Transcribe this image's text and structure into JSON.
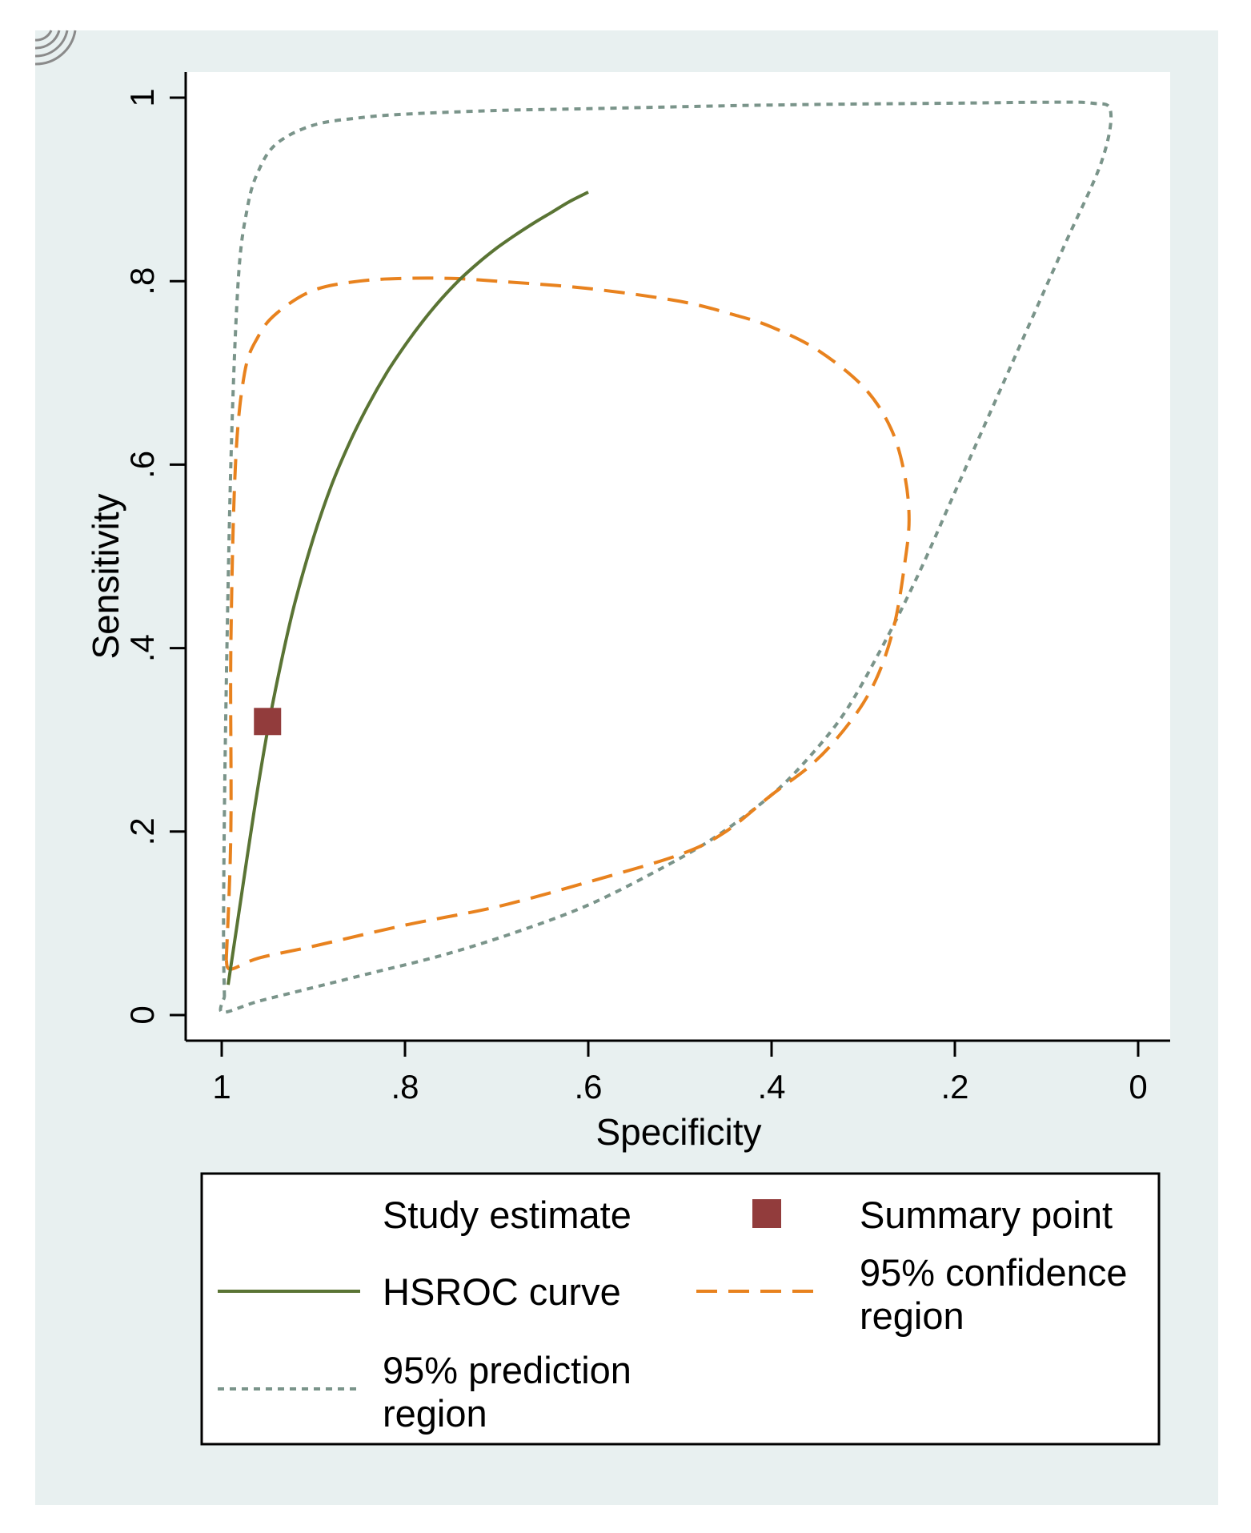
{
  "colors": {
    "outer_background": "#e8f0f0",
    "plot_background": "#ffffff",
    "hsroc": "#5a7434",
    "confidence": "#e8821e",
    "prediction": "#7a948a",
    "summary": "#923c3c",
    "axis": "#000000"
  },
  "chart_data": {
    "type": "line",
    "xlabel": "Specificity",
    "ylabel": "Sensitivity",
    "xlim": [
      1,
      0
    ],
    "ylim": [
      0,
      1
    ],
    "x_ticks": [
      1,
      0.8,
      0.6,
      0.4,
      0.2,
      0
    ],
    "x_tick_labels": [
      "1",
      ".8",
      ".6",
      ".4",
      ".2",
      "0"
    ],
    "y_ticks": [
      0,
      0.2,
      0.4,
      0.6,
      0.8,
      1
    ],
    "y_tick_labels": [
      "0",
      ".2",
      ".4",
      ".6",
      ".8",
      "1"
    ],
    "grid": false,
    "summary_point": {
      "name": "Summary point",
      "specificity": 0.95,
      "sensitivity": 0.32
    },
    "series": [
      {
        "name": "HSROC curve",
        "style": "solid",
        "specificity": [
          0.993,
          0.98,
          0.965,
          0.95,
          0.935,
          0.92,
          0.9,
          0.88,
          0.86,
          0.84,
          0.82,
          0.8,
          0.78,
          0.76,
          0.74,
          0.72,
          0.7,
          0.68,
          0.66,
          0.64,
          0.62,
          0.6
        ],
        "sensitivity": [
          0.033,
          0.12,
          0.22,
          0.31,
          0.385,
          0.45,
          0.52,
          0.578,
          0.625,
          0.665,
          0.7,
          0.73,
          0.757,
          0.781,
          0.802,
          0.82,
          0.836,
          0.85,
          0.863,
          0.875,
          0.887,
          0.897
        ]
      },
      {
        "name": "95% confidence region",
        "style": "dashed",
        "specificity": [
          0.995,
          0.99,
          0.99,
          0.985,
          0.975,
          0.96,
          0.94,
          0.9,
          0.85,
          0.8,
          0.75,
          0.7,
          0.6,
          0.5,
          0.44,
          0.4,
          0.35,
          0.3,
          0.27,
          0.255,
          0.25,
          0.255,
          0.265,
          0.28,
          0.3,
          0.33,
          0.36,
          0.4,
          0.45,
          0.5,
          0.6,
          0.7,
          0.8,
          0.9,
          0.96,
          0.99,
          0.995
        ],
        "sensitivity": [
          0.06,
          0.2,
          0.4,
          0.6,
          0.7,
          0.74,
          0.765,
          0.79,
          0.8,
          0.803,
          0.803,
          0.8,
          0.792,
          0.778,
          0.763,
          0.75,
          0.725,
          0.685,
          0.64,
          0.59,
          0.54,
          0.49,
          0.43,
          0.38,
          0.34,
          0.3,
          0.27,
          0.24,
          0.2,
          0.175,
          0.145,
          0.118,
          0.098,
          0.075,
          0.062,
          0.05,
          0.06
        ]
      },
      {
        "name": "95% prediction region",
        "style": "dotted",
        "specificity": [
          0.997,
          0.998,
          0.996,
          0.99,
          0.982,
          0.972,
          0.96,
          0.94,
          0.9,
          0.85,
          0.8,
          0.7,
          0.6,
          0.4,
          0.2,
          0.1,
          0.05,
          0.03,
          0.04,
          0.08,
          0.12,
          0.16,
          0.2,
          0.24,
          0.28,
          0.32,
          0.36,
          0.4,
          0.46,
          0.52,
          0.6,
          0.68,
          0.76,
          0.84,
          0.9,
          0.96,
          0.999,
          0.997
        ],
        "sensitivity": [
          0.02,
          0.1,
          0.3,
          0.6,
          0.8,
          0.88,
          0.92,
          0.95,
          0.97,
          0.978,
          0.982,
          0.986,
          0.988,
          0.992,
          0.994,
          0.995,
          0.994,
          0.985,
          0.93,
          0.84,
          0.75,
          0.66,
          0.57,
          0.48,
          0.4,
          0.33,
          0.28,
          0.24,
          0.195,
          0.16,
          0.12,
          0.09,
          0.065,
          0.045,
          0.03,
          0.015,
          0.003,
          0.02
        ]
      }
    ]
  },
  "legend": {
    "study_estimate": "Study estimate",
    "summary_point": "Summary point",
    "hsroc_curve": "HSROC curve",
    "confidence_line1": "95% confidence",
    "confidence_line2": "region",
    "prediction_line1": "95% prediction",
    "prediction_line2": "region"
  }
}
